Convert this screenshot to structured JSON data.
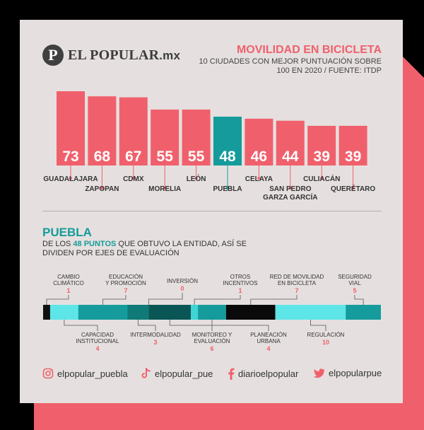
{
  "colors": {
    "coral": "#f0606c",
    "teal": "#159b9b",
    "card": "#e5e0df",
    "text": "#333333"
  },
  "brand": {
    "mark": "P",
    "name": "EL POPULAR",
    "suffix": ".mx"
  },
  "header": {
    "title": "MOVILIDAD EN BICICLETA",
    "subtitle": "10 CIUDADES CON MEJOR PUNTUACIÓN SOBRE 100 EN 2020 / FUENTE: ITDP"
  },
  "section": {
    "title": "PUEBLA",
    "desc_pre": "DE LOS ",
    "desc_highlight": "48 PUNTOS",
    "desc_post": " QUE OBTUVO LA ENTIDAD, ASÍ SE DIVIDEN POR EJES DE EVALUACIÓN"
  },
  "social": {
    "instagram": "elpopular_puebla",
    "tiktok": "elpopular_pue",
    "facebook": "diarioelpopular",
    "twitter": "elpopularpue"
  },
  "chart_data": [
    {
      "type": "bar",
      "categories": [
        "GUADALAJARA",
        "ZAPOPAN",
        "CDMX",
        "MORELIA",
        "LEÓN",
        "PUEBLA",
        "CELAYA",
        "SAN PEDRO GARZA GARCÍA",
        "CULIACÁN",
        "QUERÉTARO"
      ],
      "values": [
        73,
        68,
        67,
        55,
        55,
        48,
        46,
        44,
        39,
        39
      ],
      "highlight": "PUEBLA"
    },
    {
      "type": "bar",
      "orientation": "stacked-horizontal",
      "total": 48,
      "segments": [
        {
          "label": "CAMBIO CLIMÁTICO",
          "value": 1,
          "color": "#111111",
          "position": "top"
        },
        {
          "label": "CAPACIDAD INSTITUCIONAL",
          "value": 4,
          "color": "#5ee5e8",
          "position": "bottom"
        },
        {
          "label": "EDUCACIÓN Y PROMOCIÓN",
          "value": 7,
          "color": "#159b9b",
          "position": "top"
        },
        {
          "label": "INTERMODALIDAD",
          "value": 3,
          "color": "#0f7a78",
          "position": "bottom"
        },
        {
          "label": "INVERSIÓN",
          "value": 0,
          "color": "#0a4e4e",
          "position": "top"
        },
        {
          "label": "MONITOREO Y EVALUACIÓN",
          "value": 6,
          "color": "#0a5655",
          "position": "bottom"
        },
        {
          "label": "OTROS INCENTIVOS",
          "value": 1,
          "color": "#3fd5d5",
          "position": "top"
        },
        {
          "label": "PLANEACIÓN URBANA",
          "value": 4,
          "color": "#159b9b",
          "position": "bottom"
        },
        {
          "label": "RED DE MOVILIDAD EN BICICLETA",
          "value": 7,
          "color": "#0a0a0a",
          "position": "top"
        },
        {
          "label": "REGULACIÓN",
          "value": 10,
          "color": "#5ee5e8",
          "position": "bottom"
        },
        {
          "label": "SEGURIDAD VIAL",
          "value": 5,
          "color": "#159b9b",
          "position": "top"
        }
      ]
    }
  ]
}
